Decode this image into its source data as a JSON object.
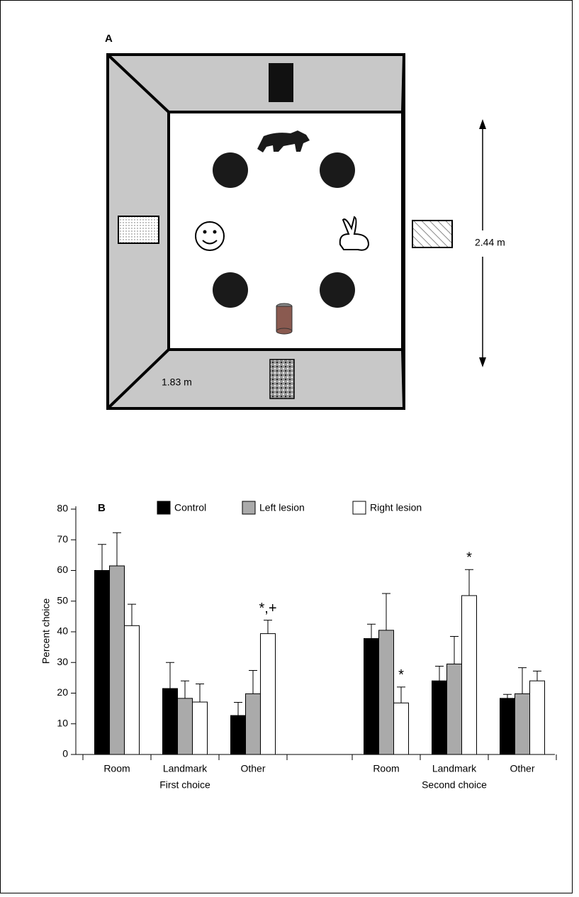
{
  "diagram": {
    "label": "A",
    "height_label": "2.44 m",
    "width_label": "1.83 m"
  },
  "chart_data": {
    "type": "bar",
    "panel_label": "B",
    "y_label": "Percent choice",
    "categories": [
      "Room",
      "Landmark",
      "Other",
      "Room",
      "Landmark",
      "Other"
    ],
    "group_labels": [
      "First choice",
      "Second choice"
    ],
    "series": [
      {
        "name": "Control",
        "color": "#000000",
        "values": [
          60,
          21.5,
          12.7,
          37.8,
          24,
          18.3
        ],
        "errors": [
          8.5,
          8.5,
          4.3,
          4.7,
          4.8,
          1.3
        ]
      },
      {
        "name": "Left lesion",
        "color": "#aaaaaa",
        "values": [
          61.5,
          18.3,
          19.8,
          40.5,
          29.5,
          19.8
        ],
        "errors": [
          10.8,
          5.7,
          7.6,
          12,
          9,
          8.5
        ]
      },
      {
        "name": "Right lesion",
        "color": "#ffffff",
        "values": [
          42,
          17.1,
          39.4,
          16.8,
          51.8,
          24
        ],
        "errors": [
          7,
          5.9,
          4.4,
          5.2,
          8.5,
          3.2
        ],
        "annotations": [
          null,
          null,
          "*,+",
          "*",
          "*",
          null
        ]
      }
    ],
    "ylim": [
      0,
      80
    ],
    "yticks": [
      0,
      10,
      20,
      30,
      40,
      50,
      60,
      70,
      80
    ],
    "legend": "top"
  }
}
